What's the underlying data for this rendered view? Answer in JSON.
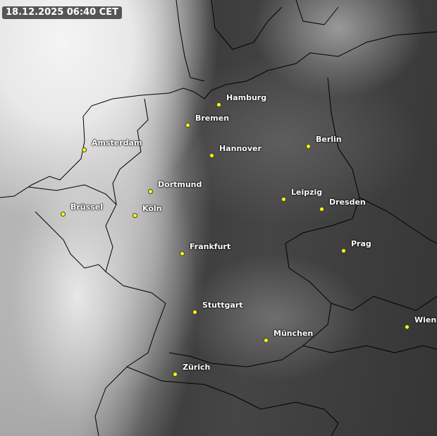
{
  "timestamp": "18.12.2025 06:40 CET",
  "dot_color": "#ffff00",
  "cities": [
    "Hamburg",
    "Bremen",
    "Amsterdam",
    "Hannover",
    "Berlin",
    "Dortmund",
    "Leipzig",
    "Dresden",
    "Brüssel",
    "Köln",
    "Frankfurt",
    "Prag",
    "Stuttgart",
    "München",
    "Wien",
    "Zürich"
  ]
}
